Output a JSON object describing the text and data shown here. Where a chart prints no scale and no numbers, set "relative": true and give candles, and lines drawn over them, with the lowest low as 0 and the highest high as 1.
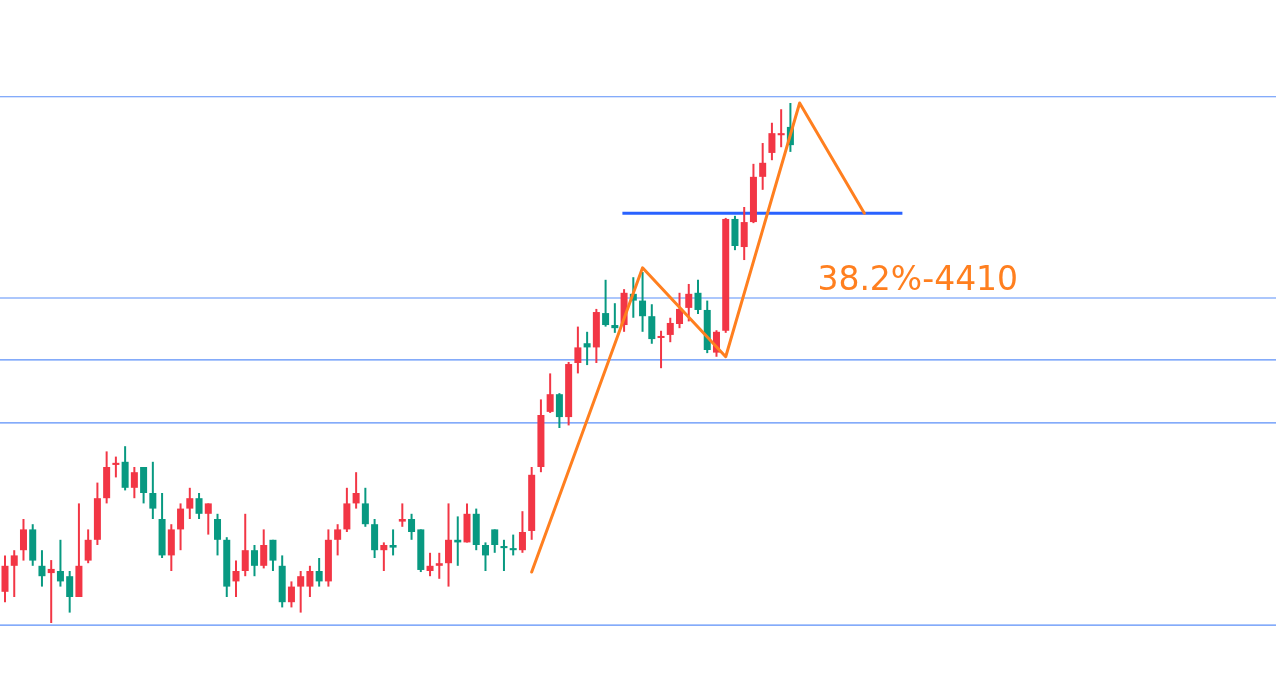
{
  "chart_data": {
    "type": "candlestick",
    "relative": true,
    "categories": [
      null,
      null,
      null,
      null,
      null,
      null,
      null,
      null,
      null,
      null,
      null,
      null,
      null,
      null,
      null,
      null,
      null,
      null,
      null,
      null,
      null,
      null,
      null,
      null,
      null,
      null,
      null,
      null,
      null,
      null,
      null,
      null,
      null,
      null,
      null,
      null,
      null,
      null,
      null,
      null,
      null,
      null,
      null,
      null,
      null,
      null,
      null,
      null,
      null,
      null,
      null,
      null,
      null,
      null,
      null,
      null,
      null,
      null,
      null,
      null,
      null,
      null,
      null,
      null,
      null,
      null,
      null,
      null,
      null,
      null,
      null,
      null,
      null,
      null,
      null,
      null,
      null,
      null,
      null,
      null,
      null,
      null,
      null,
      null,
      null,
      null,
      null,
      null,
      null,
      null,
      null,
      null,
      null,
      null
    ],
    "ohlc": [
      [
        0.06,
        0.13,
        0.04,
        0.11
      ],
      [
        0.11,
        0.14,
        0.05,
        0.13
      ],
      [
        0.14,
        0.2,
        0.12,
        0.18
      ],
      [
        0.18,
        0.19,
        0.11,
        0.12
      ],
      [
        0.11,
        0.14,
        0.07,
        0.09
      ],
      [
        0.096,
        0.121,
        0,
        0.104
      ],
      [
        0.1,
        0.16,
        0.07,
        0.08
      ],
      [
        0.09,
        0.1,
        0.02,
        0.05
      ],
      [
        0.05,
        0.23,
        0.05,
        0.11
      ],
      [
        0.12,
        0.18,
        0.115,
        0.16
      ],
      [
        0.16,
        0.27,
        0.15,
        0.24
      ],
      [
        0.24,
        0.33,
        0.23,
        0.3
      ],
      [
        0.304,
        0.32,
        0.28,
        0.308
      ],
      [
        0.31,
        0.34,
        0.255,
        0.26
      ],
      [
        0.26,
        0.3,
        0.24,
        0.29
      ],
      [
        0.3,
        0.3,
        0.23,
        0.25
      ],
      [
        0.25,
        0.31,
        0.2,
        0.22
      ],
      [
        0.2,
        0.25,
        0.125,
        0.13
      ],
      [
        0.13,
        0.19,
        0.1,
        0.18
      ],
      [
        0.18,
        0.23,
        0.14,
        0.22
      ],
      [
        0.22,
        0.26,
        0.2,
        0.24
      ],
      [
        0.24,
        0.25,
        0.2,
        0.21
      ],
      [
        0.21,
        0.23,
        0.17,
        0.23
      ],
      [
        0.2,
        0.21,
        0.13,
        0.16
      ],
      [
        0.16,
        0.165,
        0.05,
        0.07
      ],
      [
        0.08,
        0.12,
        0.05,
        0.1
      ],
      [
        0.1,
        0.21,
        0.09,
        0.14
      ],
      [
        0.14,
        0.15,
        0.09,
        0.11
      ],
      [
        0.11,
        0.18,
        0.105,
        0.15
      ],
      [
        0.16,
        0.16,
        0.1,
        0.12
      ],
      [
        0.11,
        0.13,
        0.03,
        0.04
      ],
      [
        0.04,
        0.08,
        0.03,
        0.07
      ],
      [
        0.07,
        0.1,
        0.02,
        0.09
      ],
      [
        0.07,
        0.11,
        0.05,
        0.1
      ],
      [
        0.1,
        0.125,
        0.07,
        0.08
      ],
      [
        0.08,
        0.18,
        0.07,
        0.16
      ],
      [
        0.16,
        0.19,
        0.13,
        0.18
      ],
      [
        0.18,
        0.26,
        0.175,
        0.23
      ],
      [
        0.23,
        0.29,
        0.22,
        0.25
      ],
      [
        0.23,
        0.26,
        0.185,
        0.19
      ],
      [
        0.19,
        0.2,
        0.125,
        0.14
      ],
      [
        0.14,
        0.155,
        0.1,
        0.15
      ],
      [
        0.15,
        0.18,
        0.13,
        0.145
      ],
      [
        0.195,
        0.23,
        0.185,
        0.2
      ],
      [
        0.2,
        0.21,
        0.16,
        0.175
      ],
      [
        0.18,
        0.18,
        0.098,
        0.102
      ],
      [
        0.1,
        0.135,
        0.09,
        0.11
      ],
      [
        0.11,
        0.135,
        0.085,
        0.115
      ],
      [
        0.115,
        0.23,
        0.07,
        0.16
      ],
      [
        0.16,
        0.205,
        0.11,
        0.155
      ],
      [
        0.155,
        0.23,
        0.155,
        0.21
      ],
      [
        0.21,
        0.22,
        0.14,
        0.15
      ],
      [
        0.15,
        0.155,
        0.1,
        0.13
      ],
      [
        0.18,
        0.18,
        0.135,
        0.15
      ],
      [
        0.148,
        0.16,
        0.1,
        0.144
      ],
      [
        0.144,
        0.17,
        0.13,
        0.14
      ],
      [
        0.14,
        0.215,
        0.135,
        0.175
      ],
      [
        0.177,
        0.3,
        0.16,
        0.285
      ],
      [
        0.3,
        0.43,
        0.29,
        0.4
      ],
      [
        0.406,
        0.48,
        0.404,
        0.44
      ],
      [
        0.44,
        0.442,
        0.375,
        0.396
      ],
      [
        0.396,
        0.502,
        0.38,
        0.498
      ],
      [
        0.5,
        0.57,
        0.48,
        0.53
      ],
      [
        0.538,
        0.56,
        0.496,
        0.53
      ],
      [
        0.53,
        0.604,
        0.5,
        0.598
      ],
      [
        0.596,
        0.66,
        0.57,
        0.573
      ],
      [
        0.573,
        0.615,
        0.558,
        0.567
      ],
      [
        0.573,
        0.642,
        0.56,
        0.635
      ],
      [
        0.633,
        0.665,
        0.587,
        0.62
      ],
      [
        0.62,
        0.675,
        0.56,
        0.59
      ],
      [
        0.59,
        0.613,
        0.537,
        0.546
      ],
      [
        0.55,
        0.562,
        0.49,
        0.552
      ],
      [
        0.554,
        0.587,
        0.54,
        0.577
      ],
      [
        0.575,
        0.635,
        0.567,
        0.604
      ],
      [
        0.606,
        0.652,
        0.58,
        0.633
      ],
      [
        0.635,
        0.66,
        0.594,
        0.602
      ],
      [
        0.602,
        0.62,
        0.519,
        0.525
      ],
      [
        0.52,
        0.563,
        0.512,
        0.56
      ],
      [
        0.562,
        0.779,
        0.558,
        0.777
      ],
      [
        0.777,
        0.783,
        0.717,
        0.725
      ],
      [
        0.723,
        0.8,
        0.698,
        0.771
      ],
      [
        0.771,
        0.883,
        0.769,
        0.858
      ],
      [
        0.858,
        0.923,
        0.833,
        0.885
      ],
      [
        0.904,
        0.962,
        0.89,
        0.942
      ],
      [
        0.938,
        0.988,
        0.915,
        0.942
      ],
      [
        0.954,
        1,
        0.906,
        0.919
      ],
      null,
      null,
      null,
      null,
      null,
      null,
      null,
      null
    ],
    "series": [
      {
        "type": "line",
        "color": "#ff7f1f",
        "values": [
          null,
          null,
          null,
          null,
          null,
          null,
          null,
          null,
          null,
          null,
          null,
          null,
          null,
          null,
          null,
          null,
          null,
          null,
          null,
          null,
          null,
          null,
          null,
          null,
          null,
          null,
          null,
          null,
          null,
          null,
          null,
          null,
          null,
          null,
          null,
          null,
          null,
          null,
          null,
          null,
          null,
          null,
          null,
          null,
          null,
          null,
          null,
          null,
          null,
          null,
          null,
          null,
          null,
          null,
          null,
          null,
          null,
          0.098,
          null,
          null,
          null,
          null,
          null,
          null,
          null,
          null,
          null,
          null,
          null,
          0.683,
          null,
          null,
          null,
          null,
          null,
          null,
          null,
          null,
          0.512,
          null,
          null,
          null,
          null,
          null,
          null,
          null,
          1,
          null,
          null,
          null,
          null,
          null,
          null,
          0.788
        ]
      }
    ],
    "colors": [
      "#f23645",
      "#f23645",
      "#f23645",
      "#089981",
      "#089981",
      "#f23645",
      "#089981",
      "#089981",
      "#f23645",
      "#f23645",
      "#f23645",
      "#f23645",
      "#f23645",
      "#089981",
      "#f23645",
      "#089981",
      "#089981",
      "#089981",
      "#f23645",
      "#f23645",
      "#f23645",
      "#089981",
      "#f23645",
      "#089981",
      "#089981",
      "#f23645",
      "#f23645",
      "#089981",
      "#f23645",
      "#089981",
      "#089981",
      "#f23645",
      "#f23645",
      "#f23645",
      "#089981",
      "#f23645",
      "#f23645",
      "#f23645",
      "#f23645",
      "#089981",
      "#089981",
      "#f23645",
      "#089981",
      "#f23645",
      "#089981",
      "#089981",
      "#f23645",
      "#f23645",
      "#f23645",
      "#089981",
      "#f23645",
      "#089981",
      "#089981",
      "#089981",
      "#089981",
      "#089981",
      "#f23645",
      "#f23645",
      "#f23645",
      "#f23645",
      "#089981",
      "#f23645",
      "#f23645",
      "#089981",
      "#f23645",
      "#089981",
      "#089981",
      "#f23645",
      "#089981",
      "#089981",
      "#089981",
      "#f23645",
      "#f23645",
      "#f23645",
      "#f23645",
      "#089981",
      "#089981",
      "#f23645",
      "#f23645",
      "#089981",
      "#f23645",
      "#f23645",
      "#f23645",
      "#f23645",
      "#f23645",
      "#089981",
      null,
      null,
      null,
      null,
      null,
      null,
      null,
      null
    ],
    "annotations": [
      "38.2%-4410"
    ],
    "ref_lines": [
      {
        "axis": "y",
        "value": 1.012,
        "color": "#5b8ff9"
      },
      {
        "axis": "y",
        "value": 0.625,
        "color": "#5b8ff9"
      },
      {
        "axis": "y",
        "value": 0.506,
        "color": "#5b8ff9"
      },
      {
        "axis": "y",
        "value": 0.385,
        "color": "#5b8ff9"
      },
      {
        "axis": "y",
        "value": -0.004,
        "color": "#5b8ff9"
      },
      {
        "axis": "y",
        "value": 0.788,
        "color": "#2962ff"
      }
    ]
  }
}
